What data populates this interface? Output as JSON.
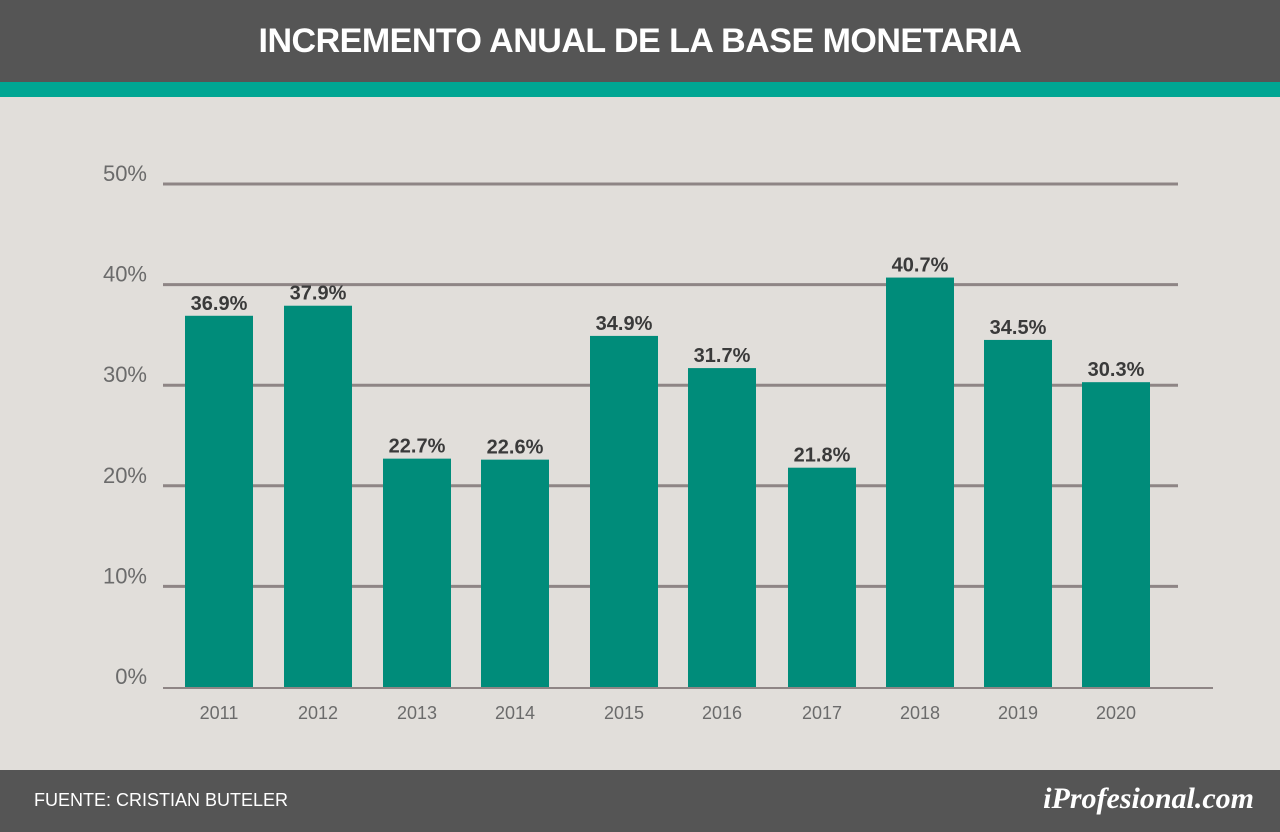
{
  "header": {
    "title": "INCREMENTO ANUAL DE LA BASE MONETARIA"
  },
  "footer": {
    "source": "FUENTE: CRISTIAN BUTELER",
    "brand": "iProfesional.com"
  },
  "colors": {
    "bar": "#008c7a",
    "header_bg": "#555555",
    "accent": "#00a693",
    "background": "#e1deda",
    "grid": "#8e8585",
    "label_text": "#3a3a3a",
    "tick_text": "#6b6b6b"
  },
  "chart_data": {
    "type": "bar",
    "title": "INCREMENTO ANUAL DE LA BASE MONETARIA",
    "categories": [
      "2011",
      "2012",
      "2013",
      "2014",
      "2015",
      "2016",
      "2017",
      "2018",
      "2019",
      "2020"
    ],
    "values": [
      36.9,
      37.9,
      22.7,
      22.6,
      34.9,
      31.7,
      21.8,
      40.7,
      34.5,
      30.3
    ],
    "value_labels": [
      "36.9%",
      "37.9%",
      "22.7%",
      "22.6%",
      "34.9%",
      "31.7%",
      "21.8%",
      "40.7%",
      "34.5%",
      "30.3%"
    ],
    "y_ticks": [
      0,
      10,
      20,
      30,
      40,
      50
    ],
    "y_tick_labels": [
      "0%",
      "10%",
      "20%",
      "30%",
      "40%",
      "50%"
    ],
    "ylim": [
      0,
      50
    ],
    "xlabel": "",
    "ylabel": "",
    "grid": true,
    "legend": "none"
  }
}
